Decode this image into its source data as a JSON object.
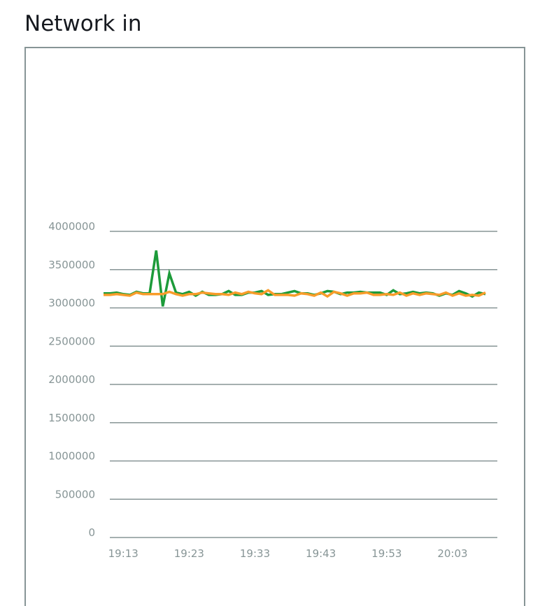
{
  "title": "Network in",
  "chart_data": {
    "type": "line",
    "title": "Network in",
    "xlabel": "",
    "ylabel": "",
    "ylim": [
      0,
      4000000
    ],
    "yticks": [
      "0",
      "500000",
      "1000000",
      "1500000",
      "2000000",
      "2500000",
      "3000000",
      "3500000",
      "4000000"
    ],
    "xticks": [
      "19:13",
      "19:23",
      "19:33",
      "19:43",
      "19:53",
      "20:03"
    ],
    "x_start": "19:10",
    "x_end": "20:08",
    "x_step_minutes": 1,
    "grid": true,
    "legend": "none",
    "series": [
      {
        "color": "#1d9b3a",
        "values": [
          3190000,
          3190000,
          3200000,
          3180000,
          3170000,
          3210000,
          3190000,
          3190000,
          3750000,
          3020000,
          3450000,
          3200000,
          3180000,
          3210000,
          3160000,
          3210000,
          3170000,
          3170000,
          3180000,
          3220000,
          3170000,
          3170000,
          3200000,
          3200000,
          3220000,
          3170000,
          3180000,
          3180000,
          3200000,
          3220000,
          3190000,
          3190000,
          3170000,
          3190000,
          3220000,
          3210000,
          3180000,
          3200000,
          3200000,
          3210000,
          3200000,
          3200000,
          3200000,
          3170000,
          3230000,
          3180000,
          3190000,
          3210000,
          3190000,
          3200000,
          3190000,
          3160000,
          3190000,
          3170000,
          3220000,
          3190000,
          3150000,
          3200000,
          3180000
        ]
      },
      {
        "color": "#f89c2a",
        "values": [
          3170000,
          3170000,
          3180000,
          3170000,
          3160000,
          3200000,
          3180000,
          3180000,
          3180000,
          3180000,
          3210000,
          3180000,
          3160000,
          3180000,
          3180000,
          3200000,
          3190000,
          3180000,
          3180000,
          3170000,
          3200000,
          3180000,
          3210000,
          3190000,
          3180000,
          3230000,
          3170000,
          3170000,
          3170000,
          3160000,
          3190000,
          3180000,
          3160000,
          3200000,
          3150000,
          3210000,
          3190000,
          3160000,
          3190000,
          3190000,
          3200000,
          3170000,
          3170000,
          3180000,
          3170000,
          3200000,
          3160000,
          3190000,
          3170000,
          3190000,
          3180000,
          3170000,
          3200000,
          3160000,
          3190000,
          3160000,
          3170000,
          3160000,
          3200000
        ]
      }
    ]
  }
}
